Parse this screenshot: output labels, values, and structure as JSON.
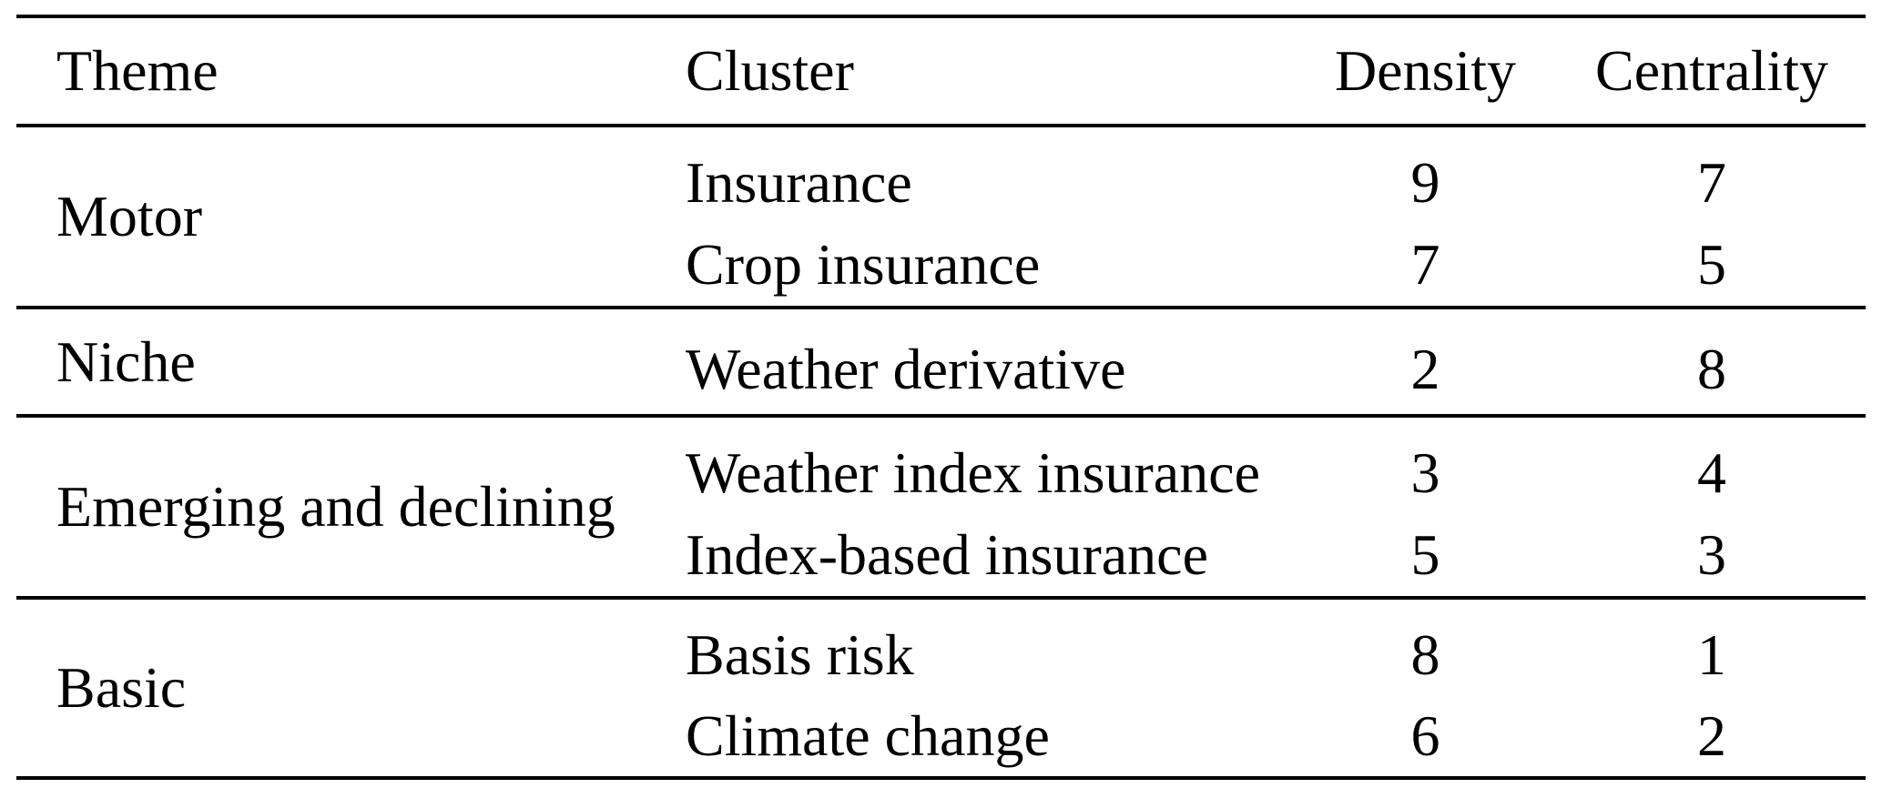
{
  "table": {
    "columns": [
      "Theme",
      "Cluster",
      "Density",
      "Centrality"
    ],
    "sections": [
      {
        "theme": "Motor",
        "rows": [
          {
            "cluster": "Insurance",
            "density": "9",
            "centrality": "7"
          },
          {
            "cluster": "Crop insurance",
            "density": "7",
            "centrality": "5"
          }
        ]
      },
      {
        "theme": "Niche",
        "rows": [
          {
            "cluster": "Weather derivative",
            "density": "2",
            "centrality": "8"
          }
        ]
      },
      {
        "theme": "Emerging and declining",
        "rows": [
          {
            "cluster": "Weather index insurance",
            "density": "3",
            "centrality": "4"
          },
          {
            "cluster": "Index-based insurance",
            "density": "5",
            "centrality": "3"
          }
        ]
      },
      {
        "theme": "Basic",
        "rows": [
          {
            "cluster": "Basis risk",
            "density": "8",
            "centrality": "1"
          },
          {
            "cluster": "Climate change",
            "density": "6",
            "centrality": "2"
          }
        ]
      }
    ]
  },
  "colors": {
    "background": "#ffffff",
    "text": "#000000",
    "rule": "#000000"
  }
}
